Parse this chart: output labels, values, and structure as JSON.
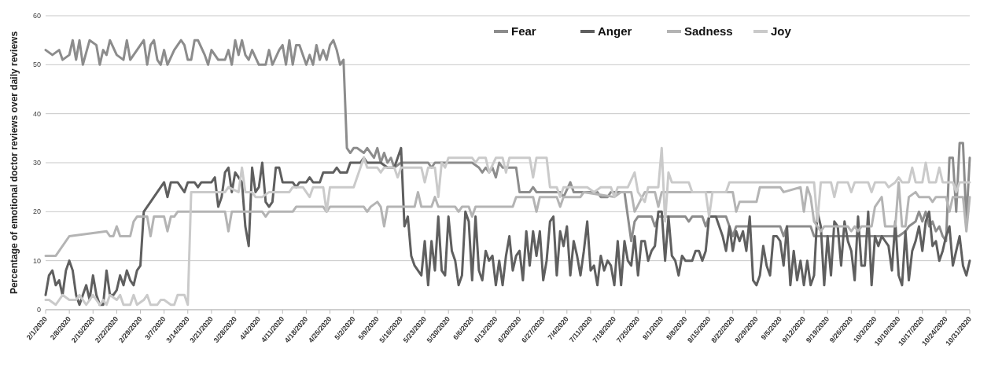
{
  "chart_data": {
    "type": "line",
    "ylabel": "Percentage of emotional doctor reviews over daily reviews",
    "ylim": [
      0,
      60
    ],
    "yticks": [
      0,
      10,
      20,
      30,
      40,
      50,
      60
    ],
    "grid": "y",
    "legend": "top",
    "marker": "none",
    "line_style": "solid",
    "xlim": [
      "2020-02-01",
      "2020-10-31"
    ],
    "xticks": [
      {
        "value": "2020-02-01",
        "label": "2/1/2020"
      },
      {
        "value": "2020-02-08",
        "label": "2/8/2020"
      },
      {
        "value": "2020-02-15",
        "label": "2/15/2020"
      },
      {
        "value": "2020-02-22",
        "label": "2/22/2020"
      },
      {
        "value": "2020-02-29",
        "label": "2/29/2020"
      },
      {
        "value": "2020-03-07",
        "label": "3/7/2020"
      },
      {
        "value": "2020-03-14",
        "label": "3/14/2020"
      },
      {
        "value": "2020-03-21",
        "label": "3/21/2020"
      },
      {
        "value": "2020-03-28",
        "label": "3/28/2020"
      },
      {
        "value": "2020-04-04",
        "label": "4/4/2020"
      },
      {
        "value": "2020-04-11",
        "label": "4/11/2020"
      },
      {
        "value": "2020-04-18",
        "label": "4/18/2020"
      },
      {
        "value": "2020-04-25",
        "label": "4/25/2020"
      },
      {
        "value": "2020-05-02",
        "label": "5/2/2020"
      },
      {
        "value": "2020-05-09",
        "label": "5/9/2020"
      },
      {
        "value": "2020-05-16",
        "label": "5/16/2020"
      },
      {
        "value": "2020-05-23",
        "label": "5/23/2020"
      },
      {
        "value": "2020-05-30",
        "label": "5/30/2020"
      },
      {
        "value": "2020-06-06",
        "label": "6/6/2020"
      },
      {
        "value": "2020-06-13",
        "label": "6/13/2020"
      },
      {
        "value": "2020-06-20",
        "label": "6/20/2020"
      },
      {
        "value": "2020-06-27",
        "label": "6/27/2020"
      },
      {
        "value": "2020-07-04",
        "label": "7/4/2020"
      },
      {
        "value": "2020-07-11",
        "label": "7/11/2020"
      },
      {
        "value": "2020-07-18",
        "label": "7/18/2020"
      },
      {
        "value": "2020-07-25",
        "label": "7/25/2020"
      },
      {
        "value": "2020-08-01",
        "label": "8/1/2020"
      },
      {
        "value": "2020-08-08",
        "label": "8/8/2020"
      },
      {
        "value": "2020-08-15",
        "label": "8/15/2020"
      },
      {
        "value": "2020-08-22",
        "label": "8/22/2020"
      },
      {
        "value": "2020-08-29",
        "label": "8/29/2020"
      },
      {
        "value": "2020-09-05",
        "label": "9/5/2020"
      },
      {
        "value": "2020-09-12",
        "label": "9/12/2020"
      },
      {
        "value": "2020-09-19",
        "label": "9/19/2020"
      },
      {
        "value": "2020-09-26",
        "label": "9/26/2020"
      },
      {
        "value": "2020-10-03",
        "label": "10/3/2020"
      },
      {
        "value": "2020-10-10",
        "label": "10/10/2020"
      },
      {
        "value": "2020-10-17",
        "label": "10/17/2020"
      },
      {
        "value": "2020-10-24",
        "label": "10/24/2020"
      },
      {
        "value": "2020-10-31",
        "label": "10/31/2020"
      }
    ],
    "series": [
      {
        "name": "Fear",
        "color": "#8c8c8c",
        "x": [
          "2020-02-01",
          "2020-02-03",
          "2020-02-05",
          "2020-02-06",
          "2020-02-08",
          "2020-02-09",
          "2020-02-10",
          "2020-02-11",
          "2020-02-12",
          "2020-02-14",
          "2020-02-16",
          "2020-02-17",
          "2020-02-18",
          "2020-02-19",
          "2020-02-20",
          "2020-02-22",
          "2020-02-24",
          "2020-02-25",
          "2020-02-26",
          "2020-02-29",
          "2020-03-01",
          "2020-03-02",
          "2020-03-03",
          "2020-03-04",
          "2020-03-05",
          "2020-03-06",
          "2020-03-07",
          "2020-03-08",
          "2020-03-10",
          "2020-03-12",
          "2020-03-13",
          "2020-03-14",
          "2020-03-15",
          "2020-03-16",
          "2020-03-17",
          "2020-03-19",
          "2020-03-20",
          "2020-03-21",
          "2020-03-23",
          "2020-03-25",
          "2020-03-26",
          "2020-03-27",
          "2020-03-28",
          "2020-03-29",
          "2020-03-30",
          "2020-03-31",
          "2020-04-01",
          "2020-04-02",
          "2020-04-04",
          "2020-04-06",
          "2020-04-07",
          "2020-04-08",
          "2020-04-10",
          "2020-04-11",
          "2020-04-12",
          "2020-04-13",
          "2020-04-14",
          "2020-04-15",
          "2020-04-16",
          "2020-04-18",
          "2020-04-19",
          "2020-04-20",
          "2020-04-21",
          "2020-04-22",
          "2020-04-23",
          "2020-04-24",
          "2020-04-25",
          "2020-04-26",
          "2020-04-27",
          "2020-04-28",
          "2020-04-29",
          "2020-04-30",
          "2020-05-01",
          "2020-05-02",
          "2020-05-03",
          "2020-05-05",
          "2020-05-06",
          "2020-05-07",
          "2020-05-08",
          "2020-05-09",
          "2020-05-10",
          "2020-05-11",
          "2020-05-12",
          "2020-05-13",
          "2020-05-14",
          "2020-05-16",
          "2020-05-24",
          "2020-05-25",
          "2020-05-26",
          "2020-06-06",
          "2020-06-08",
          "2020-06-09",
          "2020-06-10",
          "2020-06-11",
          "2020-06-12",
          "2020-06-13",
          "2020-06-14",
          "2020-06-15",
          "2020-06-19",
          "2020-06-20",
          "2020-06-23",
          "2020-06-24",
          "2020-06-25",
          "2020-07-02",
          "2020-07-03",
          "2020-07-05",
          "2020-07-06",
          "2020-07-13",
          "2020-07-14",
          "2020-07-16",
          "2020-07-17",
          "2020-07-21",
          "2020-07-22",
          "2020-07-23",
          "2020-07-24",
          "2020-07-25",
          "2020-07-29",
          "2020-07-30",
          "2020-07-31",
          "2020-08-08",
          "2020-08-09",
          "2020-08-10",
          "2020-08-13",
          "2020-08-14",
          "2020-08-15",
          "2020-08-20",
          "2020-08-21",
          "2020-08-22",
          "2020-08-23",
          "2020-09-05",
          "2020-09-06",
          "2020-09-07",
          "2020-09-14",
          "2020-09-15",
          "2020-10-10",
          "2020-10-12",
          "2020-10-13",
          "2020-10-15",
          "2020-10-16",
          "2020-10-17",
          "2020-10-18",
          "2020-10-19",
          "2020-10-20",
          "2020-10-21",
          "2020-10-22",
          "2020-10-23",
          "2020-10-24",
          "2020-10-25",
          "2020-10-26",
          "2020-10-27",
          "2020-10-28",
          "2020-10-29",
          "2020-10-30",
          "2020-10-31"
        ],
        "values": [
          53,
          52,
          53,
          51,
          52,
          55,
          51,
          55,
          50,
          55,
          54,
          50,
          53,
          52,
          55,
          52,
          51,
          55,
          51,
          54,
          55,
          50,
          54,
          55,
          51,
          50,
          53,
          50,
          53,
          55,
          54,
          51,
          51,
          55,
          55,
          52,
          50,
          53,
          51,
          51,
          53,
          50,
          55,
          52,
          55,
          52,
          51,
          53,
          50,
          50,
          53,
          50,
          53,
          54,
          50,
          55,
          50,
          54,
          54,
          50,
          52,
          50,
          54,
          51,
          53,
          51,
          54,
          55,
          53,
          50,
          51,
          33,
          32,
          33,
          33,
          32,
          33,
          32,
          31,
          33,
          30,
          32,
          30,
          31,
          29,
          30,
          30,
          29,
          30,
          30,
          29,
          28,
          29,
          28,
          29,
          27,
          30,
          29,
          29,
          24,
          24,
          25,
          24,
          24,
          23,
          26,
          24,
          24,
          23,
          23,
          24,
          24,
          19,
          14,
          18,
          19,
          19,
          17,
          19,
          19,
          18,
          19,
          19,
          17,
          19,
          19,
          17,
          15,
          17,
          17,
          15,
          17,
          17,
          15,
          15,
          16,
          17,
          18,
          20,
          18,
          20,
          17,
          18,
          16,
          17,
          15,
          14,
          31,
          31,
          20,
          34,
          34,
          18,
          31
        ]
      },
      {
        "name": "Anger",
        "color": "#5f5f5f",
        "x": [
          "2020-02-01",
          "2020-02-02",
          "2020-02-03",
          "2020-02-04",
          "2020-02-05",
          "2020-02-06",
          "2020-02-07",
          "2020-02-08",
          "2020-02-09",
          "2020-02-10",
          "2020-02-11",
          "2020-02-12",
          "2020-02-13",
          "2020-02-14",
          "2020-02-15",
          "2020-02-16",
          "2020-02-17",
          "2020-02-18",
          "2020-02-19",
          "2020-02-20",
          "2020-02-21",
          "2020-02-22",
          "2020-02-23",
          "2020-02-24",
          "2020-02-25",
          "2020-02-26",
          "2020-02-27",
          "2020-02-28",
          "2020-02-29",
          "2020-03-01",
          "2020-03-07",
          "2020-03-08",
          "2020-03-09",
          "2020-03-11",
          "2020-03-13",
          "2020-03-14",
          "2020-03-16",
          "2020-03-17",
          "2020-03-18",
          "2020-03-21",
          "2020-03-22",
          "2020-03-23",
          "2020-03-24",
          "2020-03-25",
          "2020-03-26",
          "2020-03-27",
          "2020-03-28",
          "2020-03-29",
          "2020-03-30",
          "2020-03-31",
          "2020-04-01",
          "2020-04-02",
          "2020-04-03",
          "2020-04-04",
          "2020-04-05",
          "2020-04-06",
          "2020-04-07",
          "2020-04-08",
          "2020-04-09",
          "2020-04-10",
          "2020-04-11",
          "2020-04-14",
          "2020-04-15",
          "2020-04-16",
          "2020-04-18",
          "2020-04-19",
          "2020-04-20",
          "2020-04-22",
          "2020-04-23",
          "2020-04-26",
          "2020-04-27",
          "2020-04-28",
          "2020-04-30",
          "2020-05-01",
          "2020-05-04",
          "2020-05-05",
          "2020-05-06",
          "2020-05-10",
          "2020-05-12",
          "2020-05-14",
          "2020-05-16",
          "2020-05-17",
          "2020-05-18",
          "2020-05-19",
          "2020-05-20",
          "2020-05-22",
          "2020-05-23",
          "2020-05-24",
          "2020-05-25",
          "2020-05-26",
          "2020-05-27",
          "2020-05-28",
          "2020-05-29",
          "2020-05-30",
          "2020-05-31",
          "2020-06-01",
          "2020-06-02",
          "2020-06-03",
          "2020-06-04",
          "2020-06-05",
          "2020-06-06",
          "2020-06-07",
          "2020-06-08",
          "2020-06-09",
          "2020-06-10",
          "2020-06-11",
          "2020-06-12",
          "2020-06-13",
          "2020-06-14",
          "2020-06-15",
          "2020-06-16",
          "2020-06-17",
          "2020-06-18",
          "2020-06-19",
          "2020-06-20",
          "2020-06-21",
          "2020-06-22",
          "2020-06-23",
          "2020-06-24",
          "2020-06-25",
          "2020-06-26",
          "2020-06-27",
          "2020-06-28",
          "2020-06-29",
          "2020-06-30",
          "2020-07-01",
          "2020-07-02",
          "2020-07-03",
          "2020-07-04",
          "2020-07-05",
          "2020-07-06",
          "2020-07-07",
          "2020-07-08",
          "2020-07-09",
          "2020-07-10",
          "2020-07-11",
          "2020-07-12",
          "2020-07-13",
          "2020-07-14",
          "2020-07-15",
          "2020-07-16",
          "2020-07-17",
          "2020-07-18",
          "2020-07-19",
          "2020-07-20",
          "2020-07-21",
          "2020-07-22",
          "2020-07-23",
          "2020-07-24",
          "2020-07-25",
          "2020-07-26",
          "2020-07-27",
          "2020-07-28",
          "2020-07-29",
          "2020-07-30",
          "2020-07-31",
          "2020-08-01",
          "2020-08-02",
          "2020-08-03",
          "2020-08-04",
          "2020-08-05",
          "2020-08-06",
          "2020-08-07",
          "2020-08-08",
          "2020-08-10",
          "2020-08-11",
          "2020-08-12",
          "2020-08-13",
          "2020-08-14",
          "2020-08-15",
          "2020-08-17",
          "2020-08-19",
          "2020-08-20",
          "2020-08-21",
          "2020-08-22",
          "2020-08-23",
          "2020-08-24",
          "2020-08-25",
          "2020-08-26",
          "2020-08-27",
          "2020-08-28",
          "2020-08-29",
          "2020-08-30",
          "2020-08-31",
          "2020-09-01",
          "2020-09-02",
          "2020-09-03",
          "2020-09-04",
          "2020-09-05",
          "2020-09-06",
          "2020-09-07",
          "2020-09-08",
          "2020-09-09",
          "2020-09-10",
          "2020-09-11",
          "2020-09-12",
          "2020-09-13",
          "2020-09-14",
          "2020-09-15",
          "2020-09-16",
          "2020-09-17",
          "2020-09-18",
          "2020-09-19",
          "2020-09-20",
          "2020-09-21",
          "2020-09-22",
          "2020-09-23",
          "2020-09-24",
          "2020-09-25",
          "2020-09-26",
          "2020-09-27",
          "2020-09-28",
          "2020-09-29",
          "2020-09-30",
          "2020-10-01",
          "2020-10-02",
          "2020-10-03",
          "2020-10-04",
          "2020-10-05",
          "2020-10-06",
          "2020-10-07",
          "2020-10-08",
          "2020-10-09",
          "2020-10-10",
          "2020-10-11",
          "2020-10-12",
          "2020-10-13",
          "2020-10-14",
          "2020-10-15",
          "2020-10-16",
          "2020-10-17",
          "2020-10-18",
          "2020-10-19",
          "2020-10-20",
          "2020-10-21",
          "2020-10-22",
          "2020-10-23",
          "2020-10-24",
          "2020-10-25",
          "2020-10-26",
          "2020-10-27",
          "2020-10-28",
          "2020-10-29",
          "2020-10-30",
          "2020-10-31"
        ],
        "values": [
          3,
          7,
          8,
          5,
          6,
          3,
          8,
          10,
          8,
          3,
          1,
          3,
          5,
          2,
          7,
          3,
          1,
          1,
          8,
          3,
          3,
          4,
          7,
          5,
          8,
          6,
          5,
          8,
          9,
          20,
          26,
          23,
          26,
          26,
          24,
          26,
          26,
          25,
          26,
          26,
          27,
          21,
          23,
          28,
          29,
          24,
          28,
          27,
          26,
          17,
          13,
          29,
          24,
          25,
          30,
          22,
          21,
          22,
          29,
          29,
          26,
          26,
          25,
          26,
          26,
          27,
          26,
          26,
          28,
          28,
          29,
          28,
          28,
          30,
          30,
          31,
          30,
          30,
          29,
          29,
          33,
          17,
          19,
          11,
          9,
          7,
          14,
          5,
          14,
          8,
          19,
          8,
          7,
          19,
          12,
          10,
          5,
          7,
          20,
          18,
          6,
          19,
          8,
          6,
          12,
          10,
          11,
          5,
          10,
          5,
          11,
          15,
          8,
          11,
          12,
          6,
          16,
          9,
          16,
          11,
          16,
          6,
          10,
          18,
          19,
          7,
          16,
          13,
          17,
          7,
          14,
          11,
          7,
          12,
          18,
          8,
          9,
          5,
          11,
          8,
          10,
          9,
          5,
          14,
          5,
          14,
          10,
          9,
          15,
          7,
          14,
          14,
          10,
          12,
          13,
          20,
          20,
          10,
          19,
          11,
          10,
          7,
          11,
          10,
          10,
          12,
          12,
          10,
          12,
          19,
          19,
          15,
          12,
          17,
          12,
          16,
          14,
          16,
          12,
          19,
          6,
          5,
          7,
          13,
          9,
          7,
          15,
          15,
          14,
          9,
          17,
          5,
          12,
          6,
          10,
          5,
          10,
          5,
          7,
          20,
          17,
          5,
          15,
          7,
          18,
          17,
          9,
          18,
          14,
          12,
          6,
          19,
          9,
          9,
          20,
          5,
          15,
          13,
          15,
          14,
          13,
          8,
          18,
          7,
          5,
          16,
          6,
          12,
          14,
          17,
          12,
          18,
          20,
          13,
          14,
          10,
          12,
          15,
          17,
          9,
          12,
          15,
          9,
          7,
          10
        ]
      },
      {
        "name": "Sadness",
        "color": "#b4b4b4",
        "x": [
          "2020-02-01",
          "2020-02-04",
          "2020-02-08",
          "2020-02-19",
          "2020-02-20",
          "2020-02-21",
          "2020-02-22",
          "2020-02-23",
          "2020-02-26",
          "2020-02-27",
          "2020-02-28",
          "2020-03-02",
          "2020-03-03",
          "2020-03-04",
          "2020-03-07",
          "2020-03-08",
          "2020-03-09",
          "2020-03-10",
          "2020-03-11",
          "2020-03-25",
          "2020-03-26",
          "2020-03-27",
          "2020-04-05",
          "2020-04-06",
          "2020-04-07",
          "2020-04-14",
          "2020-04-15",
          "2020-04-23",
          "2020-04-24",
          "2020-04-25",
          "2020-05-05",
          "2020-05-06",
          "2020-05-07",
          "2020-05-09",
          "2020-05-10",
          "2020-05-11",
          "2020-05-12",
          "2020-05-20",
          "2020-05-21",
          "2020-05-22",
          "2020-05-25",
          "2020-05-26",
          "2020-05-27",
          "2020-06-01",
          "2020-06-02",
          "2020-06-03",
          "2020-06-05",
          "2020-06-06",
          "2020-06-07",
          "2020-06-18",
          "2020-06-19",
          "2020-06-24",
          "2020-06-25",
          "2020-06-26",
          "2020-07-01",
          "2020-07-02",
          "2020-07-03",
          "2020-07-08",
          "2020-07-09",
          "2020-07-18",
          "2020-07-20",
          "2020-07-23",
          "2020-07-24",
          "2020-07-27",
          "2020-07-30",
          "2020-07-31",
          "2020-08-01",
          "2020-08-22",
          "2020-08-23",
          "2020-08-24",
          "2020-08-29",
          "2020-08-30",
          "2020-09-05",
          "2020-09-06",
          "2020-09-11",
          "2020-09-12",
          "2020-09-13",
          "2020-09-14",
          "2020-09-15",
          "2020-09-16",
          "2020-09-17",
          "2020-09-18",
          "2020-09-25",
          "2020-09-26",
          "2020-09-27",
          "2020-09-28",
          "2020-09-29",
          "2020-10-02",
          "2020-10-03",
          "2020-10-04",
          "2020-10-05",
          "2020-10-06",
          "2020-10-09",
          "2020-10-10",
          "2020-10-11",
          "2020-10-12",
          "2020-10-13",
          "2020-10-15",
          "2020-10-16",
          "2020-10-19",
          "2020-10-20",
          "2020-10-21",
          "2020-10-24",
          "2020-10-25",
          "2020-10-26",
          "2020-10-29",
          "2020-10-30",
          "2020-10-31"
        ],
        "values": [
          11,
          11,
          15,
          16,
          15,
          15,
          17,
          15,
          15,
          18,
          19,
          19,
          15,
          19,
          19,
          16,
          19,
          19,
          20,
          20,
          16,
          20,
          20,
          19,
          20,
          20,
          21,
          21,
          20,
          21,
          21,
          20,
          21,
          22,
          21,
          17,
          21,
          21,
          24,
          21,
          21,
          23,
          21,
          21,
          20,
          21,
          21,
          19,
          21,
          21,
          23,
          23,
          20,
          23,
          23,
          21,
          23,
          23,
          24,
          23,
          24,
          24,
          20,
          24,
          24,
          21,
          24,
          24,
          20,
          22,
          22,
          25,
          25,
          24,
          25,
          20,
          25,
          23,
          18,
          17,
          16,
          17,
          17,
          16,
          17,
          16,
          17,
          17,
          21,
          22,
          23,
          17,
          17,
          26,
          17,
          17,
          23,
          24,
          23,
          23,
          22,
          23,
          23,
          20,
          23,
          23,
          16,
          23
        ]
      },
      {
        "name": "Joy",
        "color": "#cacaca",
        "x": [
          "2020-02-01",
          "2020-02-02",
          "2020-02-04",
          "2020-02-06",
          "2020-02-08",
          "2020-02-10",
          "2020-02-11",
          "2020-02-13",
          "2020-02-15",
          "2020-02-17",
          "2020-02-18",
          "2020-02-19",
          "2020-02-20",
          "2020-02-22",
          "2020-02-23",
          "2020-02-24",
          "2020-02-26",
          "2020-02-27",
          "2020-02-28",
          "2020-03-01",
          "2020-03-02",
          "2020-03-03",
          "2020-03-05",
          "2020-03-06",
          "2020-03-07",
          "2020-03-09",
          "2020-03-10",
          "2020-03-11",
          "2020-03-13",
          "2020-03-14",
          "2020-03-15",
          "2020-03-25",
          "2020-03-26",
          "2020-03-29",
          "2020-03-30",
          "2020-03-31",
          "2020-04-02",
          "2020-04-03",
          "2020-04-05",
          "2020-04-07",
          "2020-04-13",
          "2020-04-14",
          "2020-04-17",
          "2020-04-19",
          "2020-04-20",
          "2020-04-23",
          "2020-04-24",
          "2020-04-25",
          "2020-05-02",
          "2020-05-04",
          "2020-05-05",
          "2020-05-06",
          "2020-05-09",
          "2020-05-10",
          "2020-05-11",
          "2020-05-14",
          "2020-05-15",
          "2020-05-16",
          "2020-05-22",
          "2020-05-23",
          "2020-05-24",
          "2020-05-26",
          "2020-05-27",
          "2020-05-28",
          "2020-05-29",
          "2020-05-30",
          "2020-06-06",
          "2020-06-07",
          "2020-06-08",
          "2020-06-10",
          "2020-06-11",
          "2020-06-13",
          "2020-06-15",
          "2020-06-16",
          "2020-06-17",
          "2020-06-23",
          "2020-06-24",
          "2020-06-25",
          "2020-06-28",
          "2020-06-29",
          "2020-07-01",
          "2020-07-02",
          "2020-07-03",
          "2020-07-10",
          "2020-07-12",
          "2020-07-14",
          "2020-07-17",
          "2020-07-18",
          "2020-07-19",
          "2020-07-22",
          "2020-07-24",
          "2020-07-25",
          "2020-07-27",
          "2020-07-28",
          "2020-07-31",
          "2020-08-01",
          "2020-08-02",
          "2020-08-03",
          "2020-08-04",
          "2020-08-09",
          "2020-08-10",
          "2020-08-14",
          "2020-08-15",
          "2020-08-16",
          "2020-08-20",
          "2020-08-21",
          "2020-09-15",
          "2020-09-16",
          "2020-09-17",
          "2020-09-20",
          "2020-09-21",
          "2020-09-22",
          "2020-09-25",
          "2020-09-26",
          "2020-09-27",
          "2020-10-01",
          "2020-10-02",
          "2020-10-03",
          "2020-10-06",
          "2020-10-07",
          "2020-10-09",
          "2020-10-10",
          "2020-10-11",
          "2020-10-13",
          "2020-10-14",
          "2020-10-15",
          "2020-10-17",
          "2020-10-18",
          "2020-10-19",
          "2020-10-21",
          "2020-10-22",
          "2020-10-23",
          "2020-10-26",
          "2020-10-27",
          "2020-10-28",
          "2020-10-31"
        ],
        "values": [
          2,
          2,
          1,
          3,
          2,
          2,
          3,
          1,
          3,
          1,
          2,
          1,
          3,
          2,
          3,
          1,
          1,
          3,
          1,
          2,
          3,
          1,
          1,
          2,
          2,
          1,
          1,
          3,
          3,
          1,
          24,
          24,
          25,
          24,
          29,
          24,
          24,
          23,
          23,
          24,
          24,
          25,
          25,
          23,
          25,
          25,
          20,
          25,
          25,
          29,
          31,
          29,
          29,
          28,
          29,
          29,
          27,
          29,
          29,
          26,
          29,
          29,
          23,
          30,
          29,
          31,
          31,
          30,
          31,
          31,
          28,
          31,
          31,
          28,
          31,
          31,
          27,
          31,
          31,
          25,
          25,
          23,
          25,
          25,
          24,
          25,
          25,
          23,
          25,
          25,
          28,
          24,
          22,
          25,
          25,
          33,
          18,
          28,
          26,
          26,
          24,
          24,
          19,
          24,
          24,
          26,
          26,
          18,
          26,
          26,
          23,
          26,
          26,
          24,
          26,
          26,
          24,
          26,
          26,
          25,
          26,
          27,
          26,
          26,
          29,
          26,
          26,
          30,
          26,
          26,
          29,
          26,
          26,
          24,
          26,
          26
        ]
      }
    ]
  }
}
